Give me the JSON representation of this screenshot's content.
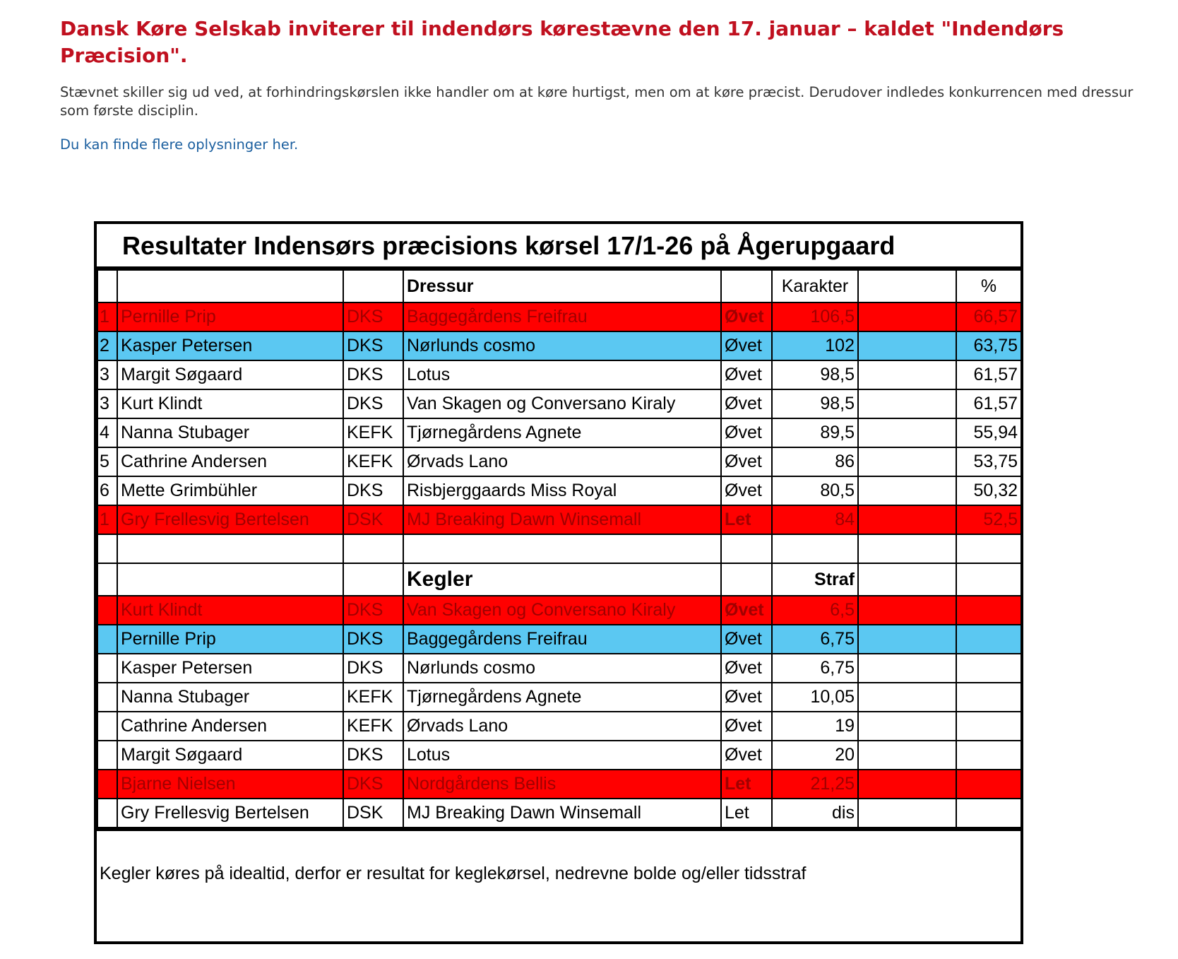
{
  "header": {
    "title": "Dansk Køre Selskab inviterer til indendørs kørestævne den 17. januar – kaldet \"Indendørs Præcision\".",
    "intro": "Stævnet skiller sig ud ved, at forhindringskørslen ikke handler om at køre hurtigst, men om at køre præcist. Derudover indledes konkurrencen med dressur som første disciplin.",
    "link": "Du kan finde flere oplysninger her."
  },
  "table": {
    "title": "Resultater  Indensørs præcisions kørsel 17/1-26 på Ågerupgaard",
    "dressur": {
      "label": "Dressur",
      "score_label": "Karakter",
      "pct_label": "%",
      "rows": [
        {
          "rank": "1",
          "name": "Pernille Prip",
          "club": "DKS",
          "horse": "Baggegårdens Freifrau",
          "level": "Øvet",
          "score": "106,5",
          "pct": "66,57",
          "color": "#ff0000"
        },
        {
          "rank": "2",
          "name": "Kasper Petersen",
          "club": "DKS",
          "horse": "Nørlunds cosmo",
          "level": "Øvet",
          "score": "102",
          "pct": "63,75",
          "color": "#5bc8f2"
        },
        {
          "rank": "3",
          "name": "Margit Søgaard",
          "club": "DKS",
          "horse": "Lotus",
          "level": "Øvet",
          "score": "98,5",
          "pct": "61,57"
        },
        {
          "rank": "3",
          "name": "Kurt Klindt",
          "club": "DKS",
          "horse": "Van Skagen og Conversano Kiraly",
          "level": "Øvet",
          "score": "98,5",
          "pct": "61,57"
        },
        {
          "rank": "4",
          "name": "Nanna Stubager",
          "club": "KEFK",
          "horse": "Tjørnegårdens Agnete",
          "level": "Øvet",
          "score": "89,5",
          "pct": "55,94"
        },
        {
          "rank": "5",
          "name": "Cathrine Andersen",
          "club": "KEFK",
          "horse": "Ørvads Lano",
          "level": "Øvet",
          "score": "86",
          "pct": "53,75"
        },
        {
          "rank": "6",
          "name": "Mette Grimbühler",
          "club": "DKS",
          "horse": "Risbjerggaards Miss Royal",
          "level": "Øvet",
          "score": "80,5",
          "pct": "50,32"
        },
        {
          "rank": "1",
          "name": "Gry Frellesvig Bertelsen",
          "club": "DSK",
          "horse": "MJ Breaking Dawn Winsemall",
          "level": "Let",
          "score": "84",
          "pct": "52,5",
          "color": "#ff0000"
        }
      ]
    },
    "kegler": {
      "label": "Kegler",
      "score_label": "Straf",
      "rows": [
        {
          "name": "Kurt Klindt",
          "club": "DKS",
          "horse": "Van Skagen og Conversano Kiraly",
          "level": "Øvet",
          "score": "6,5",
          "color": "#ff0000"
        },
        {
          "name": "Pernille Prip",
          "club": "DKS",
          "horse": "Baggegårdens Freifrau",
          "level": "Øvet",
          "score": "6,75",
          "color": "#5bc8f2"
        },
        {
          "name": "Kasper Petersen",
          "club": "DKS",
          "horse": "Nørlunds cosmo",
          "level": "Øvet",
          "score": "6,75"
        },
        {
          "name": "Nanna Stubager",
          "club": "KEFK",
          "horse": "Tjørnegårdens Agnete",
          "level": "Øvet",
          "score": "10,05"
        },
        {
          "name": "Cathrine Andersen",
          "club": "KEFK",
          "horse": "Ørvads Lano",
          "level": "Øvet",
          "score": "19"
        },
        {
          "name": "Margit Søgaard",
          "club": "DKS",
          "horse": "Lotus",
          "level": "Øvet",
          "score": "20"
        },
        {
          "name": "Bjarne Nielsen",
          "club": "DKS",
          "horse": "Nordgårdens Bellis",
          "level": "Let",
          "score": "21,25",
          "color": "#ff0000"
        },
        {
          "name": "Gry Frellesvig Bertelsen",
          "club": "DSK",
          "horse": "MJ Breaking Dawn Winsemall",
          "level": "Let",
          "score": "dis"
        }
      ]
    },
    "note": "Kegler køres på idealtid, derfor er resultat for keglekørsel, nedrevne bolde og/eller tidsstraf"
  }
}
